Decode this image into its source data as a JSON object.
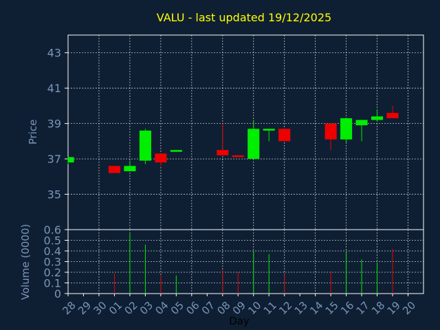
{
  "chart_data": {
    "title": "VALU - last updated 19/12/2025",
    "xlabel": "Day",
    "colors": {
      "background": "#0f1f33",
      "title": "#ffff00",
      "axis_text": "#7a96b8",
      "xlabel": "#000000",
      "grid": "#ffffff",
      "up": "#00ee00",
      "down": "#ee0000"
    },
    "price_panel": {
      "type": "candlestick",
      "ylabel": "Price",
      "ylim": [
        33.0,
        44.0
      ],
      "yticks": [
        "35",
        "37",
        "39",
        "41",
        "43"
      ],
      "grid": true
    },
    "volume_panel": {
      "type": "bar",
      "ylabel": "Volume (0000)",
      "ylim": [
        0,
        0.6
      ],
      "yticks": [
        "0",
        "0.1",
        "0.2",
        "0.3",
        "0.4",
        "0.5",
        "0.6"
      ],
      "grid": true
    },
    "x_tick_labels": [
      "28",
      "29",
      "30",
      "01",
      "02",
      "03",
      "04",
      "05",
      "06",
      "07",
      "08",
      "09",
      "10",
      "11",
      "12",
      "13",
      "14",
      "15",
      "16",
      "17",
      "18",
      "19",
      "20"
    ],
    "candles": [
      {
        "day": "28",
        "open": 36.8,
        "high": 37.1,
        "low": 36.7,
        "close": 37.1,
        "volume": 0
      },
      {
        "day": "01",
        "open": 36.6,
        "high": 36.6,
        "low": 36.2,
        "close": 36.2,
        "volume": 0.19
      },
      {
        "day": "02",
        "open": 36.3,
        "high": 36.9,
        "low": 36.3,
        "close": 36.6,
        "volume": 0.57
      },
      {
        "day": "03",
        "open": 36.9,
        "high": 38.7,
        "low": 36.7,
        "close": 38.6,
        "volume": 0.46
      },
      {
        "day": "04",
        "open": 37.3,
        "high": 37.3,
        "low": 36.6,
        "close": 36.8,
        "volume": 0.17
      },
      {
        "day": "05",
        "open": 37.4,
        "high": 37.5,
        "low": 37.4,
        "close": 37.5,
        "volume": 0.17
      },
      {
        "day": "08",
        "open": 37.5,
        "high": 39.0,
        "low": 37.2,
        "close": 37.2,
        "volume": 0.22
      },
      {
        "day": "09",
        "open": 37.2,
        "high": 37.2,
        "low": 37.1,
        "close": 37.1,
        "volume": 0.2
      },
      {
        "day": "10",
        "open": 37.0,
        "high": 39.2,
        "low": 37.0,
        "close": 38.7,
        "volume": 0.4
      },
      {
        "day": "11",
        "open": 38.6,
        "high": 38.7,
        "low": 38.0,
        "close": 38.7,
        "volume": 0.37
      },
      {
        "day": "12",
        "open": 38.7,
        "high": 38.7,
        "low": 38.0,
        "close": 38.0,
        "volume": 0.18
      },
      {
        "day": "15",
        "open": 39.0,
        "high": 39.0,
        "low": 37.5,
        "close": 38.1,
        "volume": 0.21
      },
      {
        "day": "16",
        "open": 38.1,
        "high": 39.3,
        "low": 37.9,
        "close": 39.3,
        "volume": 0.39
      },
      {
        "day": "17",
        "open": 38.9,
        "high": 39.2,
        "low": 38.0,
        "close": 39.2,
        "volume": 0.32
      },
      {
        "day": "18",
        "open": 39.2,
        "high": 39.8,
        "low": 39.1,
        "close": 39.4,
        "volume": 0.29
      },
      {
        "day": "19",
        "open": 39.6,
        "high": 40.0,
        "low": 39.3,
        "close": 39.3,
        "volume": 0.42
      }
    ]
  }
}
